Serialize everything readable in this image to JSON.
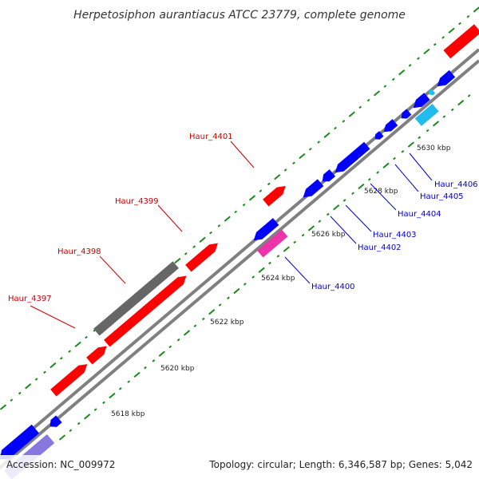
{
  "title": "Herpetosiphon aurantiacus ATCC 23779, complete genome",
  "footer": {
    "accession": "Accession: NC_009972",
    "summary": "Topology: circular; Length: 6,346,587 bp; Genes: 5,042"
  },
  "colors": {
    "backbone": "#808080",
    "forward_label": "#cc0000",
    "reverse_label": "#0000cc",
    "tick": "#1a8a1a",
    "gene_red": "#ff0000",
    "gene_blue": "#0000ff",
    "gene_gray": "#666666",
    "gene_magenta": "#ee33aa",
    "gene_cyan": "#22bbee",
    "gene_lavender": "#8877dd"
  },
  "ticks": [
    "5618 kbp",
    "5620 kbp",
    "5622 kbp",
    "5624 kbp",
    "5626 kbp",
    "5628 kbp",
    "5630 kbp"
  ],
  "labels": {
    "forward": [
      "Haur_4397",
      "Haur_4398",
      "Haur_4399",
      "Haur_4401"
    ],
    "reverse": [
      "Haur_4400",
      "Haur_4402",
      "Haur_4403",
      "Haur_4404",
      "Haur_4405",
      "Haur_4406"
    ]
  }
}
